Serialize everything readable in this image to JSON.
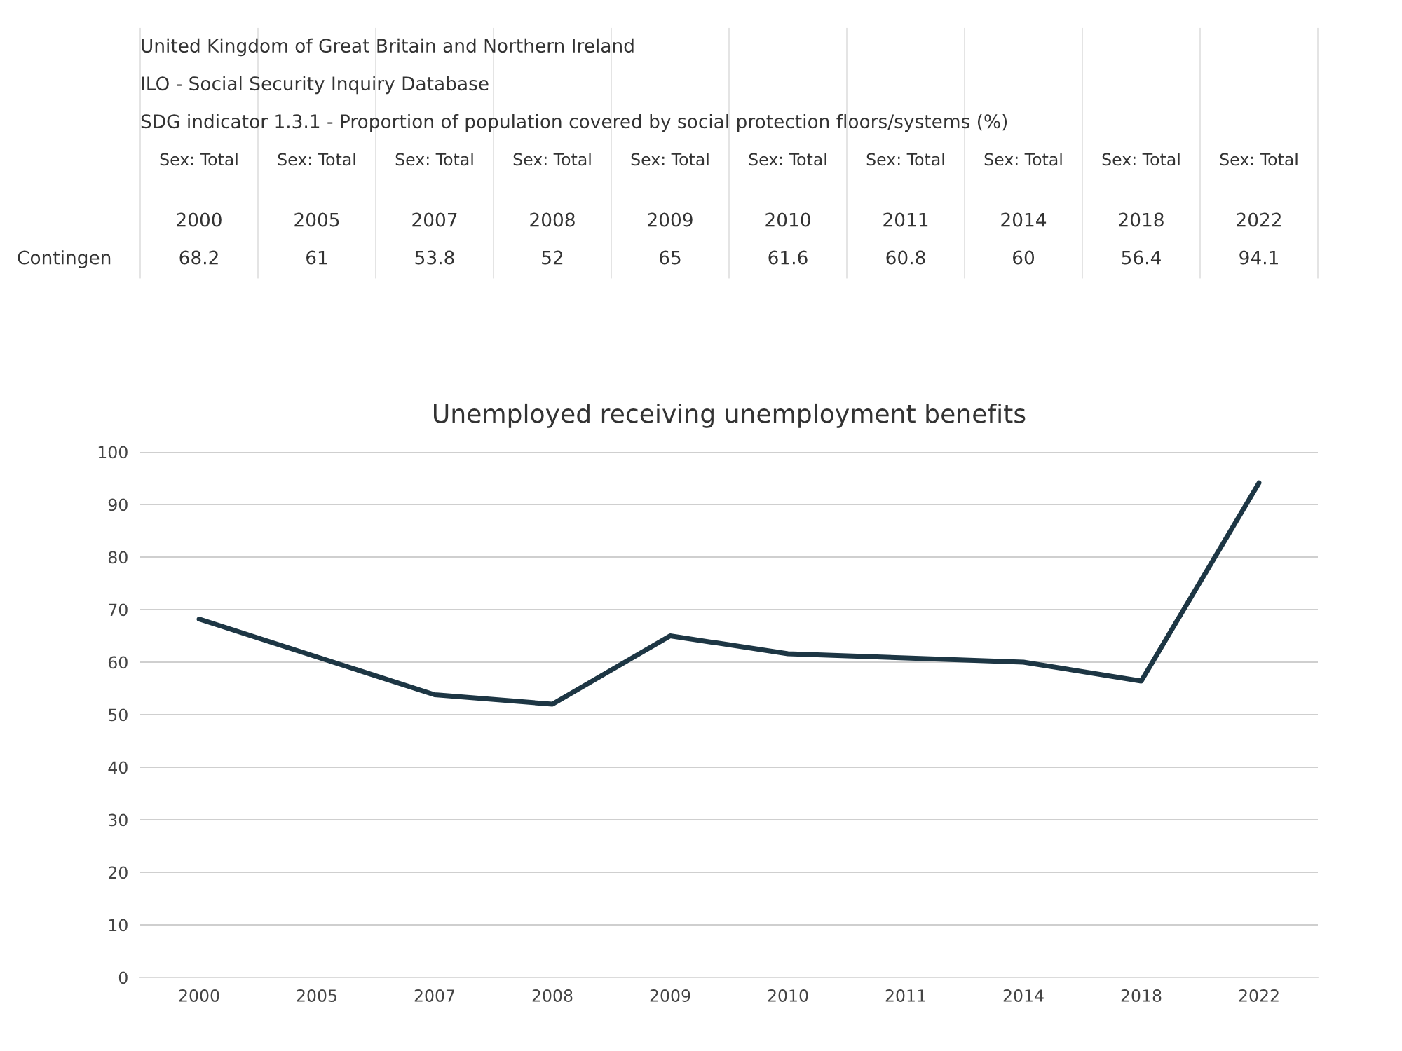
{
  "chart_data": {
    "type": "line",
    "title": "Unemployed receiving unemployment benefits",
    "categories": [
      "2000",
      "2005",
      "2007",
      "2008",
      "2009",
      "2010",
      "2011",
      "2014",
      "2018",
      "2022"
    ],
    "series": [
      {
        "color": "#1d3644",
        "values": [
          68.2,
          61,
          53.8,
          52,
          65,
          61.6,
          60.8,
          60,
          56.4,
          94.1
        ]
      }
    ],
    "ylim": [
      0,
      100
    ],
    "yticks": [
      0,
      10,
      20,
      30,
      40,
      50,
      60,
      70,
      80,
      90,
      100
    ],
    "grid": "y",
    "line_style": "solid",
    "data_labels": true,
    "annotations": [
      "United Kingdom of Great Britain and Northern Ireland",
      "ILO - Social Security Inquiry Database",
      "SDG indicator 1.3.1 - Proportion of population covered by social protection floors/systems (%)",
      "Sex: Total",
      "Sex: Total",
      "Sex: Total",
      "Sex: Total",
      "Sex: Total",
      "Sex: Total",
      "Sex: Total",
      "Sex: Total",
      "Sex: Total",
      "Sex: Total",
      "Contingen"
    ]
  }
}
